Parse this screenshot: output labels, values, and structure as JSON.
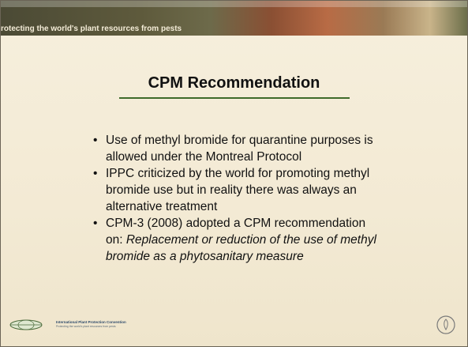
{
  "header": {
    "tagline": "rotecting the world's plant resources from pests"
  },
  "title": "CPM Recommendation",
  "bullets": [
    {
      "text": "Use of methyl bromide for quarantine purposes is allowed under the Montreal Protocol"
    },
    {
      "text": "IPPC criticized by the world for promoting methyl bromide use but in reality there was always an alternative treatment"
    },
    {
      "text": "CPM-3 (2008) adopted a CPM recommendation on: ",
      "emphasis": "Replacement or reduction of the use of methyl bromide as a phytosanitary measure"
    }
  ],
  "footer": {
    "logo_name": "International Plant Protection Convention",
    "logo_tagline": "Protecting the world's plant resources from pests"
  }
}
